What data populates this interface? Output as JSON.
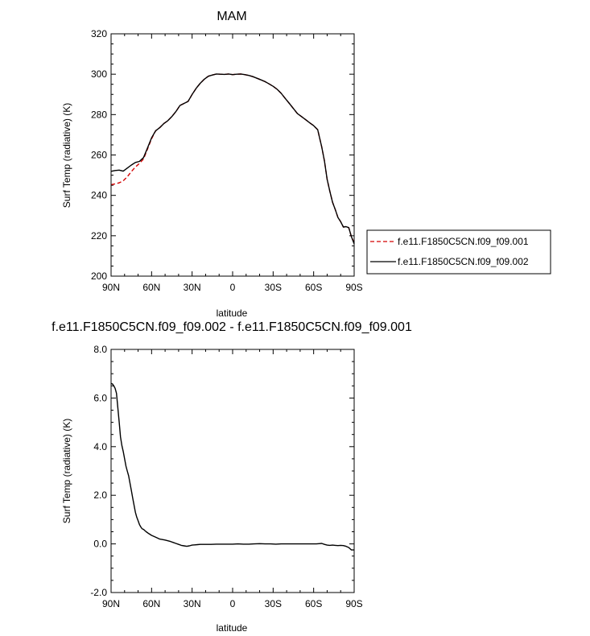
{
  "chart_data": [
    {
      "type": "line",
      "title": "MAM",
      "xlabel": "latitude",
      "ylabel": "Surf Temp (radiative) (K)",
      "xlim": [
        90,
        -90
      ],
      "ylim": [
        200,
        320
      ],
      "x_ticks": [
        90,
        60,
        30,
        0,
        -30,
        -60,
        -90
      ],
      "x_tick_labels": [
        "90N",
        "60N",
        "30N",
        "0",
        "30S",
        "60S",
        "90S"
      ],
      "y_ticks": [
        200,
        220,
        240,
        260,
        280,
        300,
        320
      ],
      "y_tick_labels": [
        "200",
        "220",
        "240",
        "260",
        "280",
        "300",
        "320"
      ],
      "legend_position": "right",
      "series": [
        {
          "name": "f.e11.F1850C5CN.f09_f09.001",
          "color": "#d40000",
          "dash": "dashed",
          "x": [
            90,
            87,
            84,
            81,
            78,
            75,
            72,
            69,
            66,
            63,
            60,
            57,
            54,
            51,
            48,
            45,
            42,
            39,
            36,
            33,
            30,
            27,
            24,
            21,
            18,
            15,
            12,
            9,
            6,
            3,
            0,
            -3,
            -6,
            -9,
            -12,
            -15,
            -18,
            -21,
            -24,
            -27,
            -30,
            -33,
            -36,
            -39,
            -42,
            -45,
            -48,
            -51,
            -54,
            -57,
            -60,
            -63,
            -66,
            -68,
            -70,
            -72,
            -74,
            -76,
            -78,
            -80,
            -82,
            -84,
            -86,
            -88,
            -90
          ],
          "values": [
            245.3,
            245.7,
            246.2,
            247.2,
            249.2,
            251.8,
            254.0,
            255.8,
            258.0,
            263.0,
            268.0,
            272.0,
            273.5,
            275.5,
            277.0,
            279.0,
            281.5,
            284.5,
            285.5,
            286.5,
            290.0,
            293.0,
            295.5,
            297.5,
            299.0,
            299.6,
            300.1,
            300.0,
            299.9,
            300.1,
            299.8,
            300.0,
            300.1,
            299.8,
            299.4,
            298.8,
            298.0,
            297.2,
            296.3,
            295.2,
            294.0,
            292.5,
            290.5,
            288.0,
            285.5,
            283.0,
            280.5,
            279.0,
            277.5,
            276.0,
            274.5,
            272.5,
            264.0,
            257.0,
            248.0,
            242.0,
            236.5,
            233.0,
            229.0,
            227.0,
            224.3,
            224.5,
            224.0,
            219.5,
            216.5
          ]
        },
        {
          "name": "f.e11.F1850C5CN.f09_f09.002",
          "color": "#000000",
          "dash": "solid",
          "x": [
            90,
            87,
            84,
            81,
            78,
            75,
            72,
            69,
            66,
            63,
            60,
            57,
            54,
            51,
            48,
            45,
            42,
            39,
            36,
            33,
            30,
            27,
            24,
            21,
            18,
            15,
            12,
            9,
            6,
            3,
            0,
            -3,
            -6,
            -9,
            -12,
            -15,
            -18,
            -21,
            -24,
            -27,
            -30,
            -33,
            -36,
            -39,
            -42,
            -45,
            -48,
            -51,
            -54,
            -57,
            -60,
            -63,
            -66,
            -68,
            -70,
            -72,
            -74,
            -76,
            -78,
            -80,
            -82,
            -84,
            -86,
            -88,
            -90
          ],
          "values": [
            251.9,
            252.3,
            252.5,
            252.0,
            253.5,
            255.0,
            256.3,
            256.8,
            258.7,
            263.5,
            268.5,
            272.0,
            273.5,
            275.5,
            277.0,
            279.0,
            281.5,
            284.5,
            285.5,
            286.5,
            290.0,
            293.0,
            295.5,
            297.5,
            299.0,
            299.6,
            300.1,
            300.0,
            299.9,
            300.1,
            299.8,
            300.0,
            300.1,
            299.8,
            299.4,
            298.8,
            298.0,
            297.2,
            296.3,
            295.2,
            294.0,
            292.5,
            290.5,
            288.0,
            285.5,
            283.0,
            280.5,
            279.0,
            277.5,
            276.0,
            274.5,
            272.5,
            264.0,
            257.0,
            248.0,
            242.0,
            236.5,
            233.0,
            229.0,
            227.0,
            224.3,
            224.5,
            224.0,
            219.5,
            216.0
          ]
        }
      ]
    },
    {
      "type": "line",
      "title": "f.e11.F1850C5CN.f09_f09.002 - f.e11.F1850C5CN.f09_f09.001",
      "xlabel": "latitude",
      "ylabel": "Surf Temp (radiative) (K)",
      "xlim": [
        90,
        -90
      ],
      "ylim": [
        -2.0,
        8.0
      ],
      "x_ticks": [
        90,
        60,
        30,
        0,
        -30,
        -60,
        -90
      ],
      "x_tick_labels": [
        "90N",
        "60N",
        "30N",
        "0",
        "30S",
        "60S",
        "90S"
      ],
      "y_ticks": [
        -2,
        0,
        2,
        4,
        6,
        8
      ],
      "y_tick_labels": [
        "-2.0",
        "0.0",
        "2.0",
        "4.0",
        "6.0",
        "8.0"
      ],
      "series": [
        {
          "color": "#000000",
          "dash": "solid",
          "x": [
            90,
            89,
            88,
            87,
            86,
            85,
            84,
            83,
            82,
            81,
            80,
            79,
            78,
            77,
            76,
            75,
            74,
            73,
            72,
            71,
            70,
            69,
            68,
            67,
            66,
            65,
            64,
            62,
            60,
            58,
            56,
            54,
            52,
            50,
            48,
            46,
            44,
            42,
            40,
            38,
            36,
            34,
            32,
            30,
            28,
            26,
            24,
            20,
            16,
            12,
            8,
            4,
            0,
            -4,
            -8,
            -12,
            -16,
            -20,
            -24,
            -28,
            -32,
            -36,
            -40,
            -44,
            -48,
            -52,
            -56,
            -60,
            -62,
            -64,
            -66,
            -68,
            -70,
            -72,
            -74,
            -76,
            -78,
            -80,
            -82,
            -84,
            -86,
            -88,
            -90
          ],
          "values": [
            6.6,
            6.58,
            6.5,
            6.4,
            6.2,
            5.6,
            5.0,
            4.4,
            4.05,
            3.8,
            3.5,
            3.2,
            3.0,
            2.8,
            2.5,
            2.2,
            1.9,
            1.6,
            1.3,
            1.1,
            0.95,
            0.8,
            0.7,
            0.62,
            0.6,
            0.55,
            0.5,
            0.42,
            0.35,
            0.3,
            0.25,
            0.2,
            0.18,
            0.16,
            0.13,
            0.1,
            0.06,
            0.02,
            -0.02,
            -0.06,
            -0.08,
            -0.1,
            -0.08,
            -0.05,
            -0.04,
            -0.03,
            -0.02,
            -0.02,
            -0.02,
            -0.01,
            -0.01,
            -0.01,
            -0.01,
            0.0,
            -0.01,
            -0.01,
            0.0,
            0.01,
            0.0,
            0.0,
            -0.01,
            0.0,
            0.0,
            0.0,
            0.0,
            0.0,
            0.0,
            0.0,
            0.0,
            0.01,
            0.02,
            -0.02,
            -0.05,
            -0.06,
            -0.05,
            -0.06,
            -0.07,
            -0.06,
            -0.07,
            -0.1,
            -0.15,
            -0.25,
            -0.25
          ]
        }
      ]
    }
  ]
}
